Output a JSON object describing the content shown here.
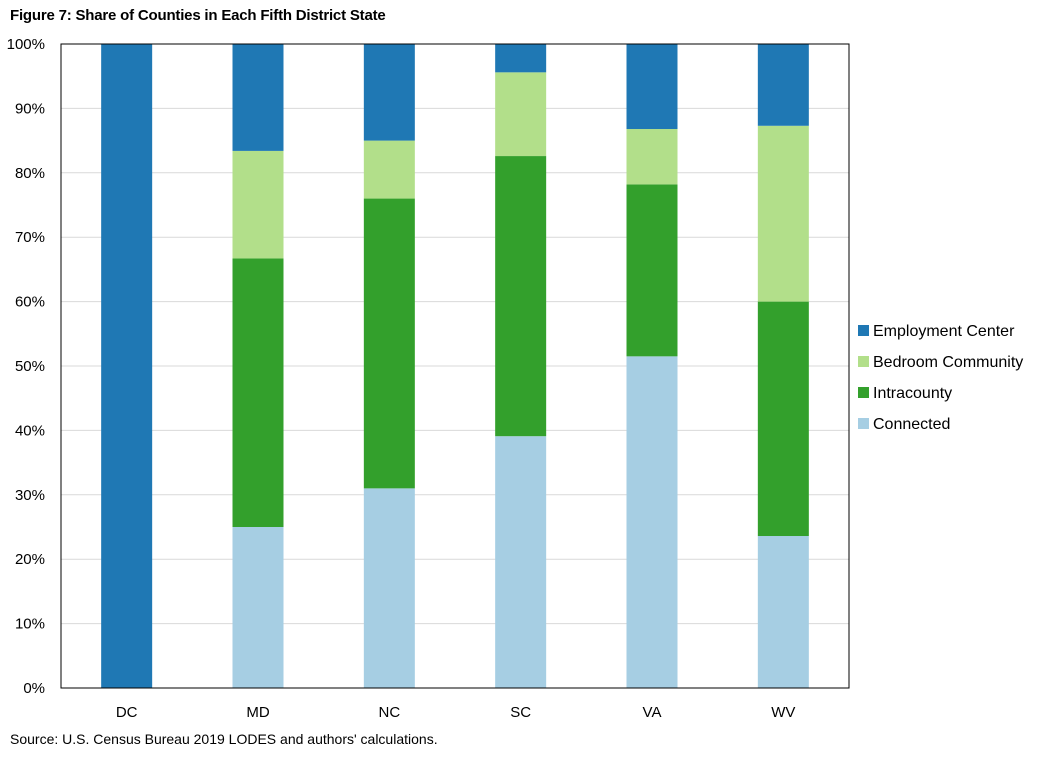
{
  "chart_data": {
    "type": "bar",
    "stacked": true,
    "title": "Figure 7: Share of Counties in Each Fifth District State",
    "xlabel": "",
    "ylabel": "",
    "categories": [
      "DC",
      "MD",
      "NC",
      "SC",
      "VA",
      "WV"
    ],
    "ylim": [
      0,
      100
    ],
    "yticks": [
      "0%",
      "10%",
      "20%",
      "30%",
      "40%",
      "50%",
      "60%",
      "70%",
      "80%",
      "90%",
      "100%"
    ],
    "series": [
      {
        "name": "Connected",
        "color": "#a6cee3",
        "values": [
          0,
          25,
          31,
          39.1,
          51.5,
          23.6
        ]
      },
      {
        "name": "Intracounty",
        "color": "#33a02c",
        "values": [
          0,
          41.7,
          45,
          43.5,
          26.7,
          36.4
        ]
      },
      {
        "name": "Bedroom Community",
        "color": "#b2df8a",
        "values": [
          0,
          16.7,
          9,
          13,
          8.6,
          27.3
        ]
      },
      {
        "name": "Employment Center",
        "color": "#1f78b4",
        "values": [
          100,
          16.6,
          15,
          4.4,
          13.2,
          12.7
        ]
      }
    ],
    "legend_order": [
      "Employment Center",
      "Bedroom Community",
      "Intracounty",
      "Connected"
    ],
    "legend_position": "right",
    "grid": true,
    "source": "Source: U.S. Census Bureau 2019 LODES and authors' calculations."
  }
}
